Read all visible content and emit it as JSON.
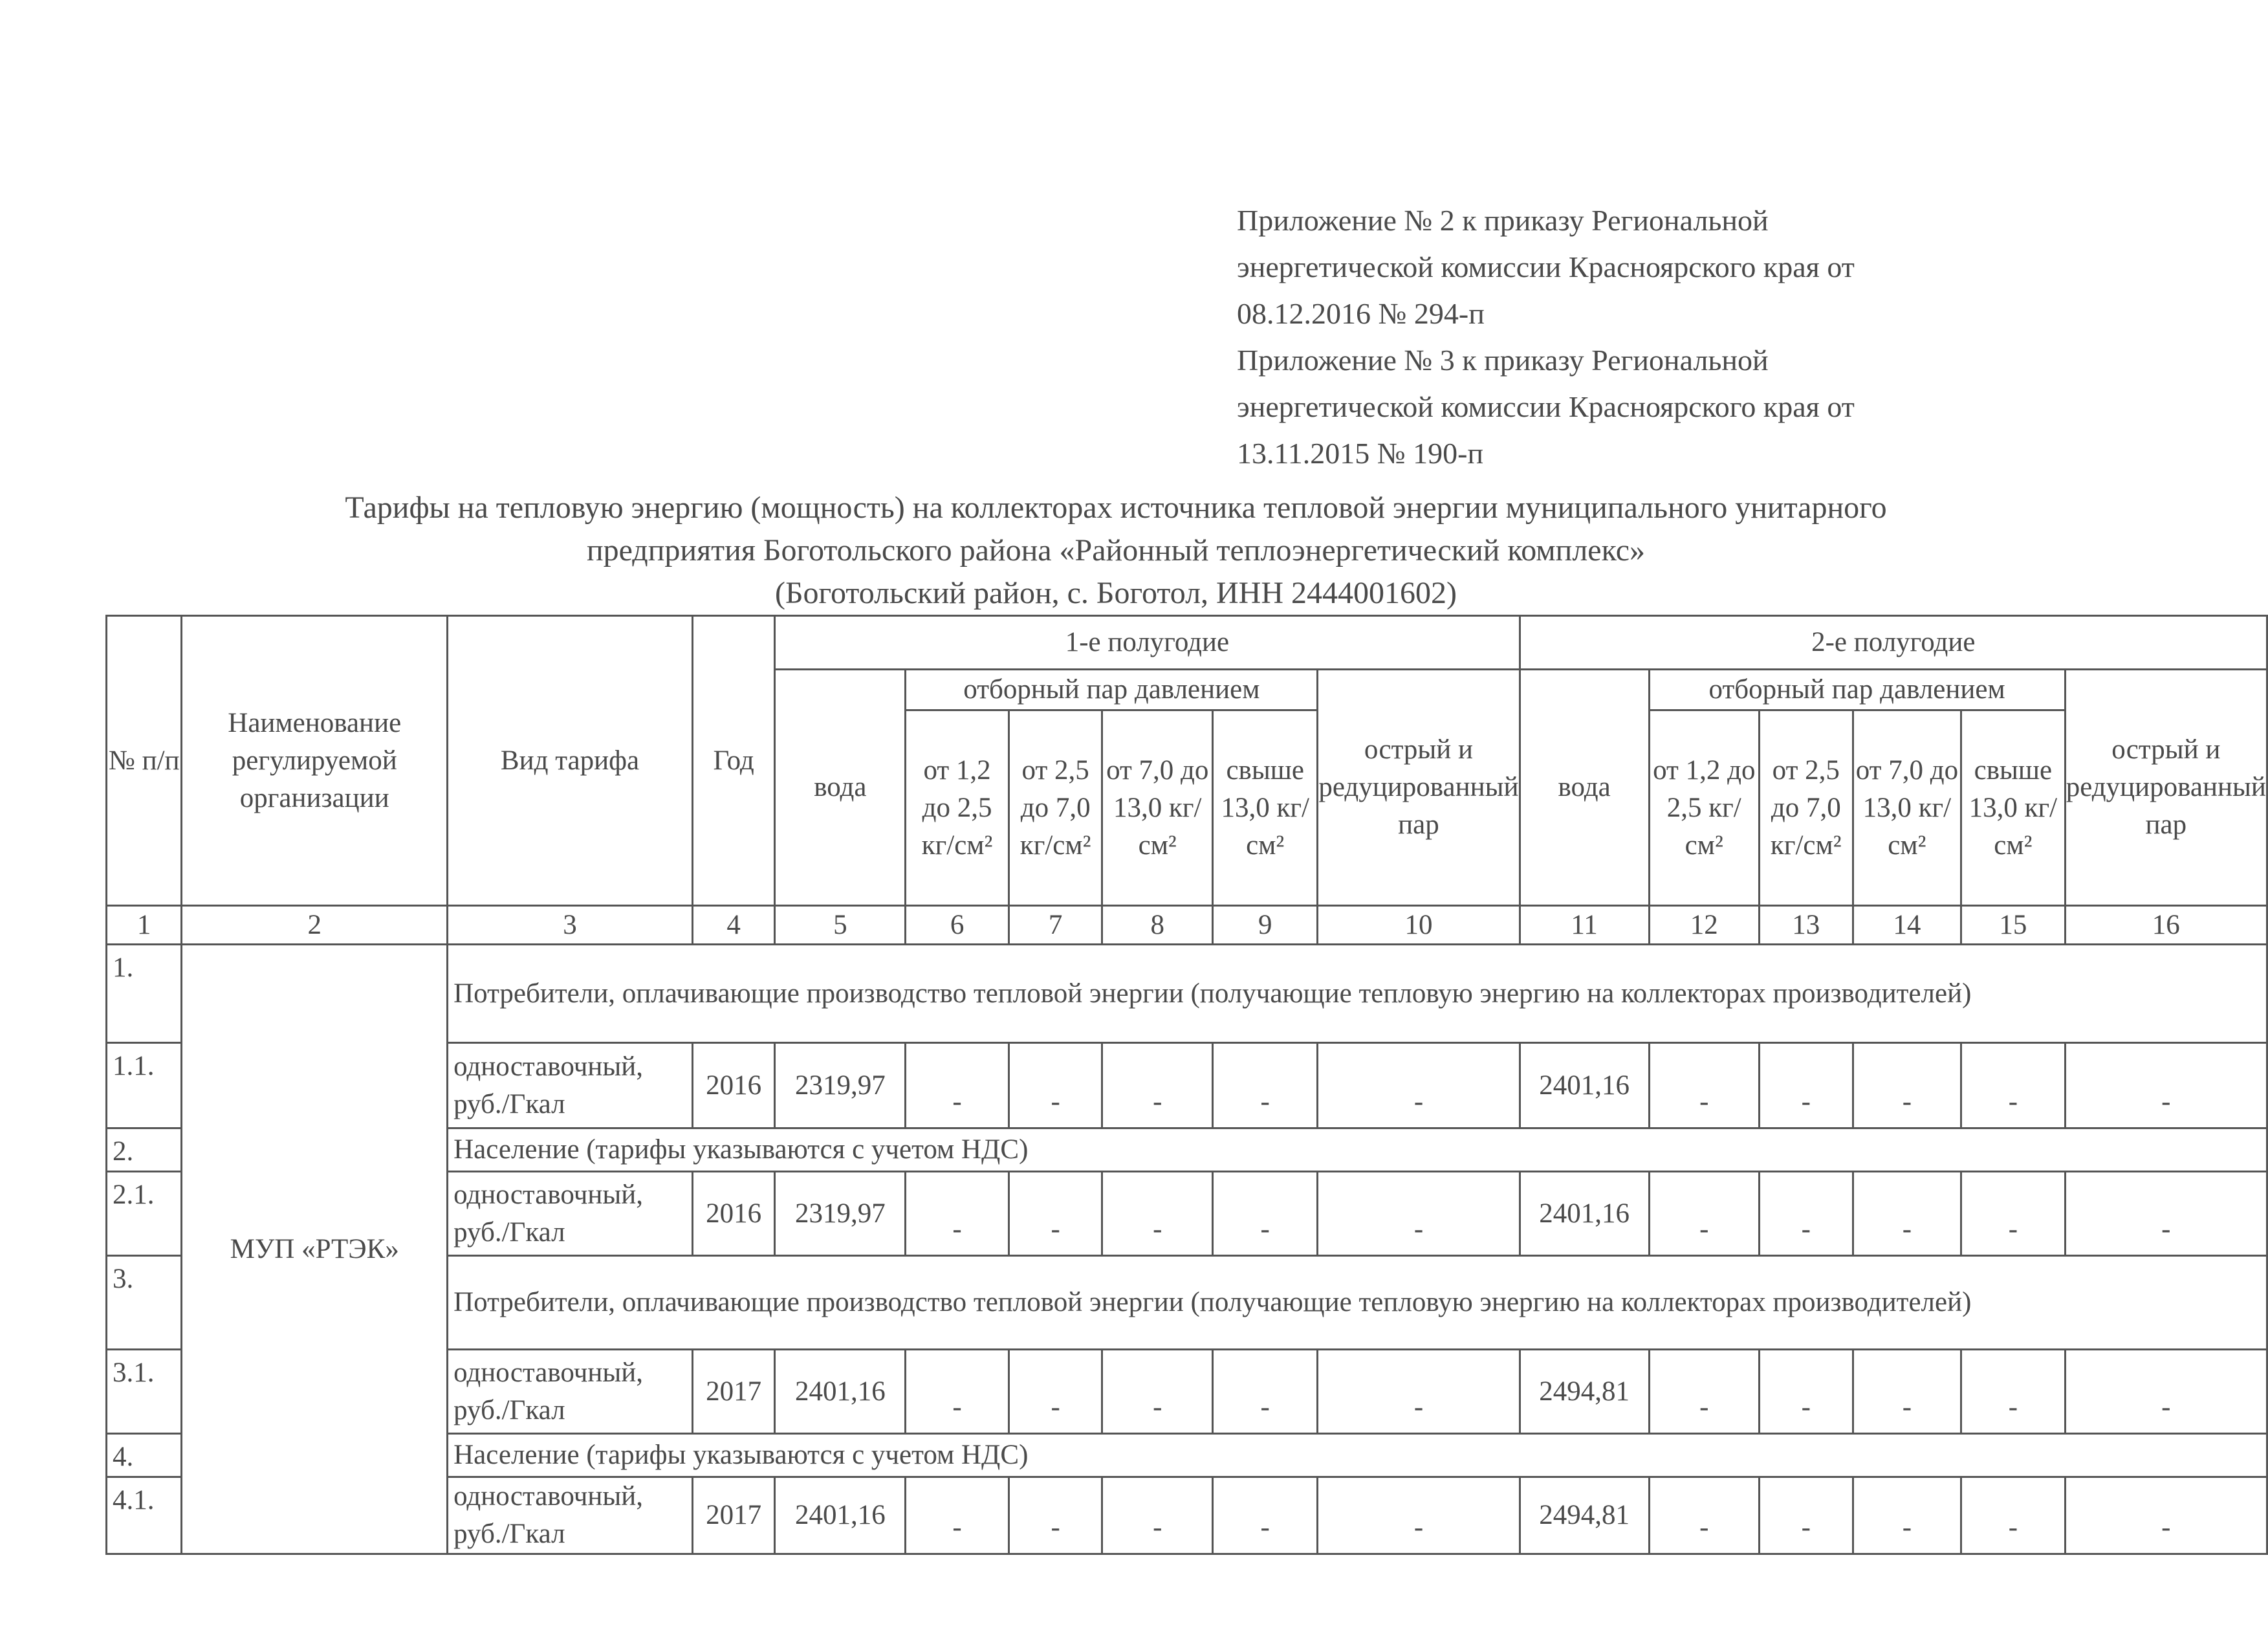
{
  "appendix": [
    "Приложение № 2 к приказу Региональной",
    "энергетической  комиссии Красноярского края от",
    "08.12.2016 № 294-п",
    "Приложение  № 3 к приказу Региональной",
    "энергетической  комиссии Красноярского края от",
    "13.11.2015 № 190-п"
  ],
  "title": [
    "Тарифы на тепловую энергию (мощность) на коллекторах источника тепловой энергии муниципального унитарного",
    "предприятия Боготольского района «Районный теплоэнергетический комплекс»",
    "(Боготольский район, с. Боготол, ИНН 2444001602)"
  ],
  "header": {
    "num": "№ п/п",
    "org": "Наименование регулируемой организации",
    "tariff_type": "Вид тарифа",
    "year": "Год",
    "half1": "1-е полугодие",
    "half2": "2-е полугодие",
    "water": "вода",
    "steam_pressure": "отборный пар давлением",
    "sharp_steam": "острый и редуцированный пар",
    "p1": "от 1,2 до 2,5 кг/см²",
    "p2": "от 2,5 до 7,0 кг/см²",
    "p3": "от 7,0 до 13,0 кг/см²",
    "p4": "свыше 13,0 кг/см²",
    "col_numbers": [
      "1",
      "2",
      "3",
      "4",
      "5",
      "6",
      "7",
      "8",
      "9",
      "10",
      "11",
      "12",
      "13",
      "14",
      "15",
      "16"
    ]
  },
  "organization": "МУП «РТЭК»",
  "rows": [
    {
      "num": "1.",
      "section": "Потребители, оплачивающие производство тепловой энергии (получающие  тепловую   энергию на коллекторах производителей)"
    },
    {
      "num": "1.1.",
      "type": "одноставочный, руб./Гкал",
      "year": "2016",
      "h1_water": "2319,97",
      "h2_water": "2401,16",
      "dash": "-"
    },
    {
      "num": "2.",
      "section": "Население (тарифы указываются с учетом НДС)"
    },
    {
      "num": "2.1.",
      "type": "одноставочный, руб./Гкал",
      "year": "2016",
      "h1_water": "2319,97",
      "h2_water": "2401,16",
      "dash": "-"
    },
    {
      "num": "3.",
      "section": "Потребители, оплачивающие производство тепловой энергии (получающие  тепловую   энергию на коллекторах производителей)"
    },
    {
      "num": "3.1.",
      "type": "одноставочный, руб./Гкал",
      "year": "2017",
      "h1_water": "2401,16",
      "h2_water": "2494,81",
      "dash": "-"
    },
    {
      "num": "4.",
      "section": "Население (тарифы указываются с учетом НДС)"
    },
    {
      "num": "4.1.",
      "type": "одноставочный, руб./Гкал",
      "year": "2017",
      "h1_water": "2401,16",
      "h2_water": "2494,81",
      "dash": "-"
    }
  ]
}
